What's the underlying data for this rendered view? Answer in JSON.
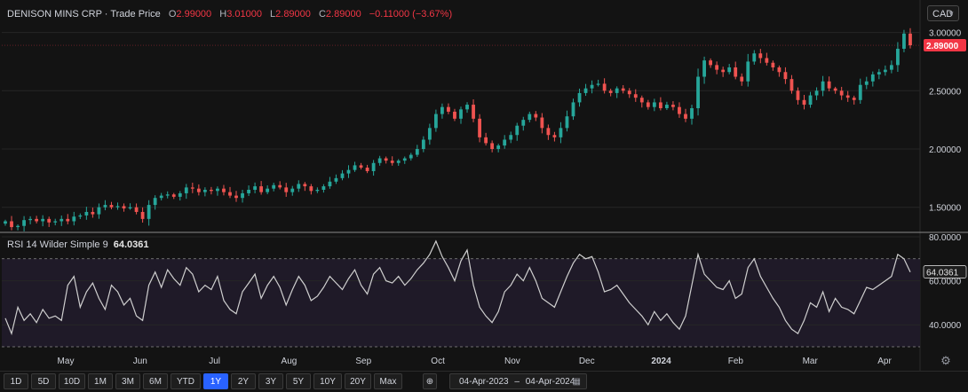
{
  "header": {
    "title": "DENISON MINS CRP · Trade Price",
    "open_label": "O",
    "open": "2.99000",
    "high_label": "H",
    "high": "3.01000",
    "low_label": "L",
    "low": "2.89000",
    "close_label": "C",
    "close": "2.89000",
    "change": "−0.11000 (−3.67%)"
  },
  "currency": {
    "value": "CAD",
    "caret_icon": "chevron-down-icon"
  },
  "rsi": {
    "label": "RSI 14 Wilder Simple 9",
    "value": "64.0361"
  },
  "price_badge": "2.89000",
  "rsi_badge": "64.0361",
  "colors": {
    "up": "#26a69a",
    "down": "#ef5350",
    "rsi_line": "#cfcfcf",
    "rsi_band": "#1f1a28",
    "badge": "#f23645",
    "accent": "#2962ff"
  },
  "toolbar": {
    "buttons": [
      "1D",
      "5D",
      "10D",
      "1M",
      "3M",
      "6M",
      "YTD",
      "1Y",
      "2Y",
      "3Y",
      "5Y",
      "10Y",
      "20Y",
      "Max"
    ],
    "active": "1Y",
    "compare_icon": "compare-icon",
    "date_from": "04-Apr-2023",
    "date_sep": "–",
    "date_to": "04-Apr-2024",
    "calendar_icon": "calendar-icon",
    "settings_icon": "gear-icon"
  },
  "chart_data": [
    {
      "type": "candlestick",
      "title": "DENISON MINS CRP · Trade Price",
      "x_labels": [
        "May",
        "Jun",
        "Jul",
        "Aug",
        "Sep",
        "Oct",
        "Nov",
        "Dec",
        "2024",
        "Feb",
        "Mar",
        "Apr"
      ],
      "ylim": [
        1.3,
        3.05
      ],
      "yticks": [
        "1.50000",
        "2.00000",
        "2.50000",
        "3.00000"
      ],
      "close_series": [
        1.38,
        1.33,
        1.34,
        1.39,
        1.4,
        1.38,
        1.4,
        1.37,
        1.38,
        1.4,
        1.38,
        1.42,
        1.43,
        1.46,
        1.44,
        1.5,
        1.52,
        1.5,
        1.51,
        1.49,
        1.5,
        1.46,
        1.4,
        1.52,
        1.58,
        1.6,
        1.61,
        1.59,
        1.62,
        1.67,
        1.66,
        1.63,
        1.65,
        1.64,
        1.66,
        1.63,
        1.6,
        1.58,
        1.62,
        1.65,
        1.68,
        1.63,
        1.66,
        1.69,
        1.67,
        1.63,
        1.66,
        1.7,
        1.68,
        1.64,
        1.65,
        1.68,
        1.72,
        1.75,
        1.79,
        1.82,
        1.86,
        1.84,
        1.81,
        1.88,
        1.92,
        1.9,
        1.88,
        1.9,
        1.92,
        1.95,
        2.0,
        2.08,
        2.18,
        2.3,
        2.36,
        2.32,
        2.26,
        2.34,
        2.38,
        2.26,
        2.1,
        2.05,
        2.0,
        2.03,
        2.08,
        2.12,
        2.2,
        2.25,
        2.3,
        2.27,
        2.18,
        2.12,
        2.1,
        2.18,
        2.28,
        2.4,
        2.48,
        2.52,
        2.55,
        2.56,
        2.5,
        2.48,
        2.52,
        2.5,
        2.47,
        2.44,
        2.4,
        2.36,
        2.4,
        2.35,
        2.38,
        2.36,
        2.3,
        2.26,
        2.35,
        2.62,
        2.76,
        2.72,
        2.68,
        2.66,
        2.7,
        2.62,
        2.58,
        2.75,
        2.82,
        2.78,
        2.74,
        2.7,
        2.66,
        2.6,
        2.5,
        2.42,
        2.38,
        2.46,
        2.5,
        2.58,
        2.52,
        2.5,
        2.46,
        2.44,
        2.42,
        2.55,
        2.58,
        2.64,
        2.66,
        2.68,
        2.72,
        2.86,
        2.99,
        2.89
      ],
      "last_price": "2.89000"
    },
    {
      "type": "line",
      "title": "RSI 14 Wilder Simple 9",
      "ylim": [
        28,
        82
      ],
      "yticks": [
        "40.0000",
        "60.0000",
        "80.0000"
      ],
      "reference_lines": [
        70,
        30
      ],
      "values": [
        43,
        36,
        48,
        42,
        45,
        41,
        47,
        43,
        44,
        42,
        58,
        62,
        48,
        55,
        59,
        52,
        47,
        58,
        55,
        49,
        52,
        44,
        42,
        58,
        64,
        57,
        65,
        61,
        58,
        66,
        63,
        55,
        58,
        56,
        62,
        51,
        47,
        45,
        55,
        59,
        63,
        52,
        58,
        62,
        57,
        49,
        56,
        62,
        58,
        51,
        53,
        57,
        62,
        59,
        56,
        61,
        65,
        58,
        54,
        63,
        66,
        60,
        59,
        62,
        58,
        61,
        65,
        68,
        72,
        78,
        71,
        66,
        60,
        69,
        74,
        58,
        48,
        44,
        41,
        46,
        55,
        58,
        63,
        60,
        66,
        60,
        52,
        50,
        48,
        55,
        62,
        68,
        72,
        70,
        71,
        64,
        55,
        56,
        58,
        54,
        50,
        47,
        44,
        40,
        46,
        42,
        45,
        41,
        38,
        44,
        58,
        72,
        63,
        60,
        57,
        56,
        60,
        52,
        54,
        66,
        70,
        62,
        57,
        52,
        48,
        42,
        38,
        36,
        42,
        50,
        48,
        55,
        46,
        52,
        48,
        47,
        45,
        51,
        57,
        56,
        58,
        60,
        62,
        72,
        70,
        64
      ],
      "last_value": "64.0361"
    }
  ]
}
